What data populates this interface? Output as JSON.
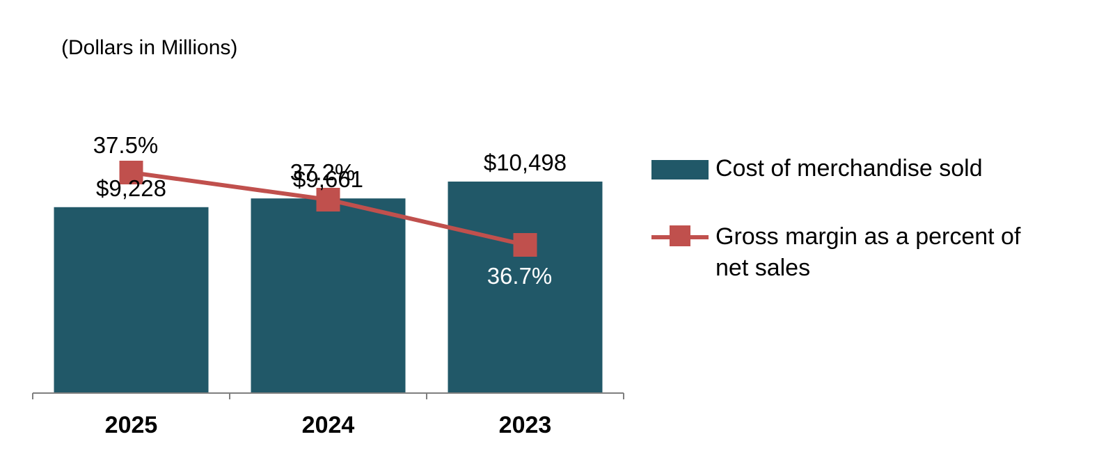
{
  "units_label": "(Dollars in Millions)",
  "colors": {
    "bar": "#215868",
    "line": "#C0504D",
    "axis": "#7F7F7F"
  },
  "chart_data": {
    "type": "bar+line",
    "categories": [
      "2025",
      "2024",
      "2023"
    ],
    "series": [
      {
        "name": "Cost of merchandise sold",
        "type": "bar",
        "values": [
          9228,
          9661,
          10498
        ],
        "value_labels": [
          "$9,228",
          "$9,661",
          "$10,498"
        ]
      },
      {
        "name": "Gross margin as a percent of net sales",
        "type": "line",
        "marker": "square",
        "values": [
          37.5,
          37.2,
          36.7
        ],
        "value_labels": [
          "37.5%",
          "37.2%",
          "36.7%"
        ]
      }
    ],
    "xlabel": "",
    "ylabel": "",
    "gridlines": false,
    "legend_position": "right"
  },
  "legend": {
    "bar_label": "Cost of merchandise sold",
    "line_label_1": "Gross margin as a percent of",
    "line_label_2": "net sales"
  }
}
